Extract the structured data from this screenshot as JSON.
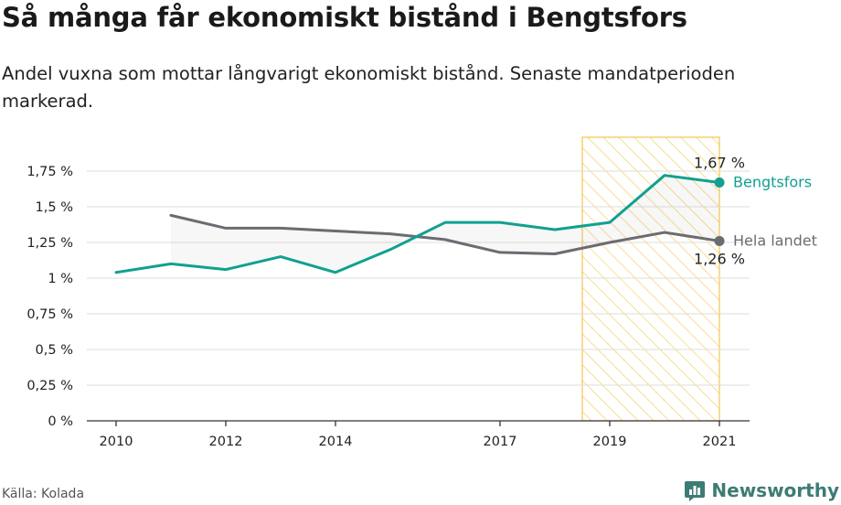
{
  "title": "Så många får ekonomiskt bistånd i Bengtsfors",
  "subtitle": "Andel vuxna som mottar långvarigt ekonomiskt bistånd. Senaste mandatperioden markerad.",
  "source": "Källa: Kolada",
  "brand": "Newsworthy",
  "colors": {
    "bengtsfors": "#11a08f",
    "hela_landet": "#6b6b72",
    "highlight": "#f3c64b",
    "axis": "#333333",
    "grid": "#dddddd"
  },
  "chart_data": {
    "type": "line",
    "x_ticks": [
      2010,
      2012,
      2014,
      2017,
      2019,
      2021
    ],
    "xlim": [
      2010,
      2021
    ],
    "ylim": [
      0,
      1.75
    ],
    "y_ticks": [
      {
        "value": 0,
        "label": "0 %"
      },
      {
        "value": 0.25,
        "label": "0,25 %"
      },
      {
        "value": 0.5,
        "label": "0,5 %"
      },
      {
        "value": 0.75,
        "label": "0,75 %"
      },
      {
        "value": 1.0,
        "label": "1 %"
      },
      {
        "value": 1.25,
        "label": "1,25 %"
      },
      {
        "value": 1.5,
        "label": "1,5 %"
      },
      {
        "value": 1.75,
        "label": "1,75 %"
      }
    ],
    "highlight_range": [
      2018.5,
      2021
    ],
    "series": [
      {
        "name": "Bengtsfors",
        "end_label": "1,67 %",
        "x": [
          2010,
          2011,
          2012,
          2013,
          2014,
          2015,
          2016,
          2017,
          2018,
          2019,
          2020,
          2021
        ],
        "values": [
          1.04,
          1.1,
          1.06,
          1.15,
          1.04,
          1.2,
          1.39,
          1.39,
          1.34,
          1.39,
          1.72,
          1.67
        ]
      },
      {
        "name": "Hela landet",
        "end_label": "1,26 %",
        "x": [
          2011,
          2012,
          2013,
          2014,
          2015,
          2016,
          2017,
          2018,
          2019,
          2020,
          2021
        ],
        "values": [
          1.44,
          1.35,
          1.35,
          1.33,
          1.31,
          1.27,
          1.18,
          1.17,
          1.25,
          1.32,
          1.26
        ]
      }
    ]
  }
}
